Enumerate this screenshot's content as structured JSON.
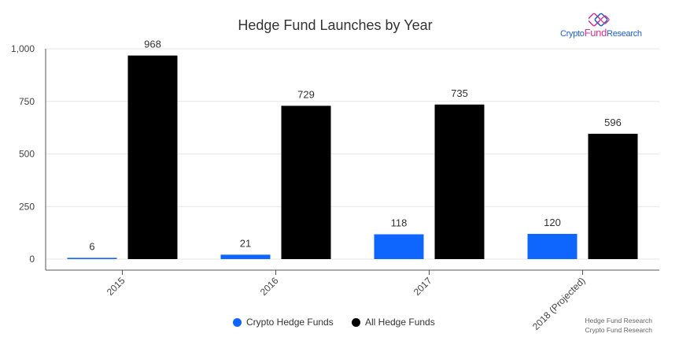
{
  "logo": {
    "text_1": "Crypto",
    "text_2": "Fund",
    "text_3": "Research",
    "colors": {
      "blue": "#1e5fcf",
      "pink": "#e0318f"
    }
  },
  "legend": {
    "items": [
      {
        "label": "Crypto Hedge Funds",
        "color": "#0f66ff"
      },
      {
        "label": "All Hedge Funds",
        "color": "#000000"
      }
    ]
  },
  "credits": {
    "line1": "Hedge Fund Research",
    "line2": "Crypto Fund Research"
  },
  "chart_data": {
    "type": "bar",
    "title": "Hedge Fund Launches by Year",
    "xlabel": "",
    "ylabel": "",
    "categories": [
      "2015",
      "2016",
      "2017",
      "2018 (Projected)"
    ],
    "series": [
      {
        "name": "Crypto Hedge Funds",
        "color": "#0f66ff",
        "values": [
          6,
          21,
          118,
          120
        ],
        "labels": [
          "6",
          "21",
          "118",
          "120"
        ]
      },
      {
        "name": "All Hedge Funds",
        "color": "#000000",
        "values": [
          968,
          729,
          735,
          596
        ],
        "labels": [
          "968",
          "729",
          "735",
          "596"
        ]
      }
    ],
    "ylim": [
      0,
      1000
    ],
    "yticks": [
      0,
      250,
      500,
      750,
      1000
    ],
    "ytick_labels": [
      "0",
      "250",
      "500",
      "750",
      "1,000"
    ],
    "grid": true,
    "legend_position": "bottom"
  }
}
